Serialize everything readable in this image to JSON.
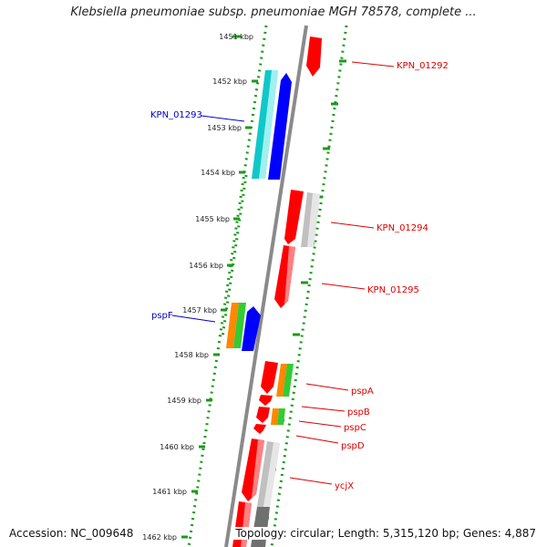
{
  "title": "Klebsiella pneumoniae subsp. pneumoniae MGH 78578, complete ...",
  "footer": {
    "accession": "Accession: NC_009648",
    "topology": "Topology: circular; Length: 5,315,120 bp; Genes: 4,887"
  },
  "colors": {
    "backbone": "#808080",
    "dotted_border": "#1a9a1a",
    "tick": "#1a9a1a",
    "red": "#ff0000",
    "blue": "#0000ff",
    "cyan": "#00cccc",
    "orange": "#ff8800",
    "green": "#33cc33",
    "gray": "#c8c8c8",
    "dark_gray": "#707070",
    "label_red": "#dd0000",
    "label_blue": "#0000cc"
  },
  "ruler": {
    "unit": "kbp",
    "ticks": [
      "1451 kbp",
      "1452 kbp",
      "1453 kbp",
      "1454 kbp",
      "1455 kbp",
      "1456 kbp",
      "1457 kbp",
      "1458 kbp",
      "1459 kbp",
      "1460 kbp",
      "1461 kbp",
      "1462 kbp"
    ]
  },
  "genes": [
    {
      "label": "KPN_01292",
      "strand": "reverse",
      "color": "red"
    },
    {
      "label": "KPN_01293",
      "strand": "forward",
      "color": "blue"
    },
    {
      "label": "KPN_01294",
      "strand": "reverse",
      "color": "red"
    },
    {
      "label": "KPN_01295",
      "strand": "reverse",
      "color": "red"
    },
    {
      "label": "pspF",
      "strand": "forward",
      "color": "blue"
    },
    {
      "label": "pspA",
      "strand": "reverse",
      "color": "red"
    },
    {
      "label": "pspB",
      "strand": "reverse",
      "color": "red"
    },
    {
      "label": "pspC",
      "strand": "reverse",
      "color": "red"
    },
    {
      "label": "pspD",
      "strand": "reverse",
      "color": "red"
    },
    {
      "label": "ycjX",
      "strand": "reverse",
      "color": "red"
    }
  ]
}
